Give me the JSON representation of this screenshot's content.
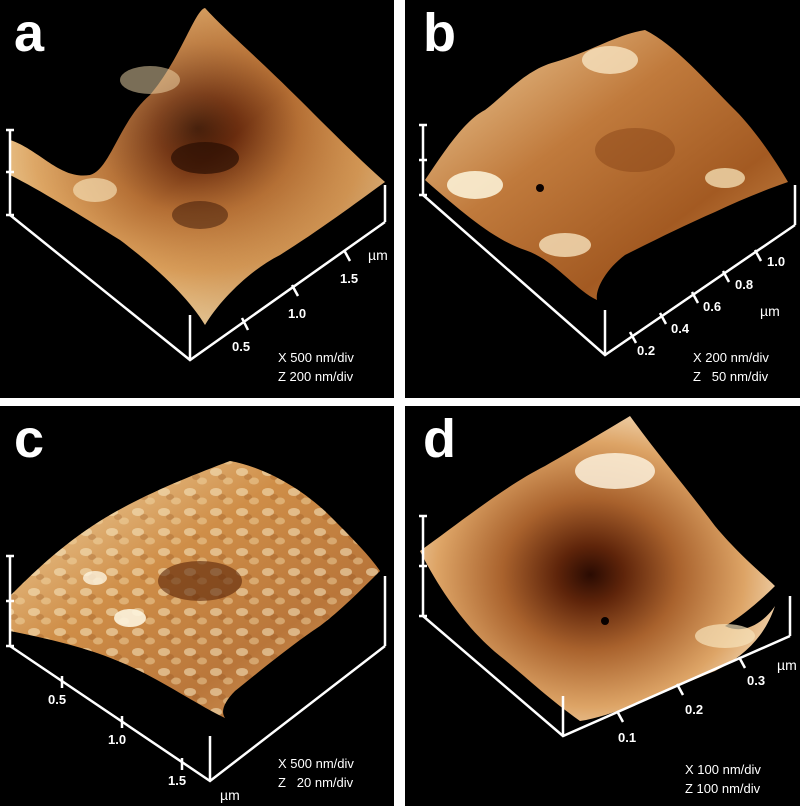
{
  "panels": {
    "a": {
      "letter": "a",
      "ticks": [
        "0.5",
        "1.0",
        "1.5"
      ],
      "unit": "µm",
      "scale_x": "X 500 nm/div",
      "scale_z": "Z 200 nm/div"
    },
    "b": {
      "letter": "b",
      "ticks": [
        "0.2",
        "0.4",
        "0.6",
        "0.8",
        "1.0"
      ],
      "unit": "µm",
      "scale_x": "X 200 nm/div",
      "scale_z": "Z   50 nm/div"
    },
    "c": {
      "letter": "c",
      "ticks": [
        "0.5",
        "1.0",
        "1.5"
      ],
      "unit": "µm",
      "scale_x": "X 500 nm/div",
      "scale_z": "Z   20 nm/div"
    },
    "d": {
      "letter": "d",
      "ticks": [
        "0.1",
        "0.2",
        "0.3"
      ],
      "unit": "µm",
      "scale_x": "X 100 nm/div",
      "scale_z": "Z 100 nm/div"
    }
  },
  "colors": {
    "background": "#000000",
    "separator": "#ffffff",
    "surface_light": "#f7e6c4",
    "surface_mid": "#c8853f",
    "surface_dark": "#4a1c08",
    "axis": "#ffffff"
  }
}
